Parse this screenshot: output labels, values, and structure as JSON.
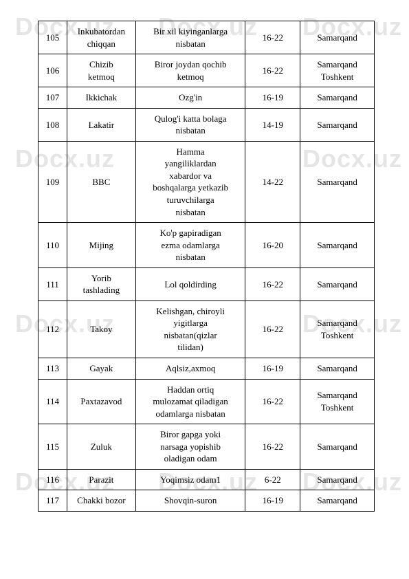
{
  "watermark_text": "Docx.uz",
  "table": {
    "rows": [
      {
        "id": "105",
        "term": "Inkubatordan\nchiqqan",
        "meaning": "Bir xil kiyinganlarga\nnisbatan",
        "age": "16-22",
        "region": "Samarqand"
      },
      {
        "id": "106",
        "term": "Chizib\nketmoq",
        "meaning": "Biror joydan qochib\nketmoq",
        "age": "16-22",
        "region": "Samarqand\nToshkent"
      },
      {
        "id": "107",
        "term": "Ikkichak",
        "meaning": "Ozg'in",
        "age": "16-19",
        "region": "Samarqand"
      },
      {
        "id": "108",
        "term": "Lakatir",
        "meaning": "Qulog'i katta bolaga\nnisbatan",
        "age": "14-19",
        "region": "Samarqand"
      },
      {
        "id": "109",
        "term": "BBC",
        "meaning": "Hamma\nyangiliklardan\nxabardor va\nboshqalarga yetkazib\nturuvchilarga\nnisbatan",
        "age": "14-22",
        "region": "Samarqand"
      },
      {
        "id": "110",
        "term": "Mijing",
        "meaning": "Ko'p gapiradigan\nezma odamlarga\nnisbatan",
        "age": "16-20",
        "region": "Samarqand"
      },
      {
        "id": "111",
        "term": "Yorib\ntashlading",
        "meaning": "Lol qoldirding",
        "age": "16-22",
        "region": "Samarqand"
      },
      {
        "id": "112",
        "term": "Takoy",
        "meaning": "Kelishgan, chiroyli\nyigitlarga\nnisbatan(qizlar\ntilidan)",
        "age": "16-22",
        "region": "Samarqand\nToshkent"
      },
      {
        "id": "113",
        "term": "Gayak",
        "meaning": "Aqlsiz,axmoq",
        "age": "16-19",
        "region": "Samarqand"
      },
      {
        "id": "114",
        "term": "Paxtazavod",
        "meaning": "Haddan ortiq\nmulozamat qiladigan\nodamlarga nisbatan",
        "age": "16-22",
        "region": "Samarqand\nToshkent"
      },
      {
        "id": "115",
        "term": "Zuluk",
        "meaning": "Biror gapga yoki\nnarsaga yopishib\noladigan odam",
        "age": "16-22",
        "region": "Samarqand"
      },
      {
        "id": "116",
        "term": "Parazit",
        "meaning": "Yoqimsiz odam1",
        "age": "6-22",
        "region": "Samarqand"
      },
      {
        "id": "117",
        "term": "Chakki bozor",
        "meaning": "Shovqin-suron",
        "age": "16-19",
        "region": "Samarqand"
      }
    ]
  }
}
